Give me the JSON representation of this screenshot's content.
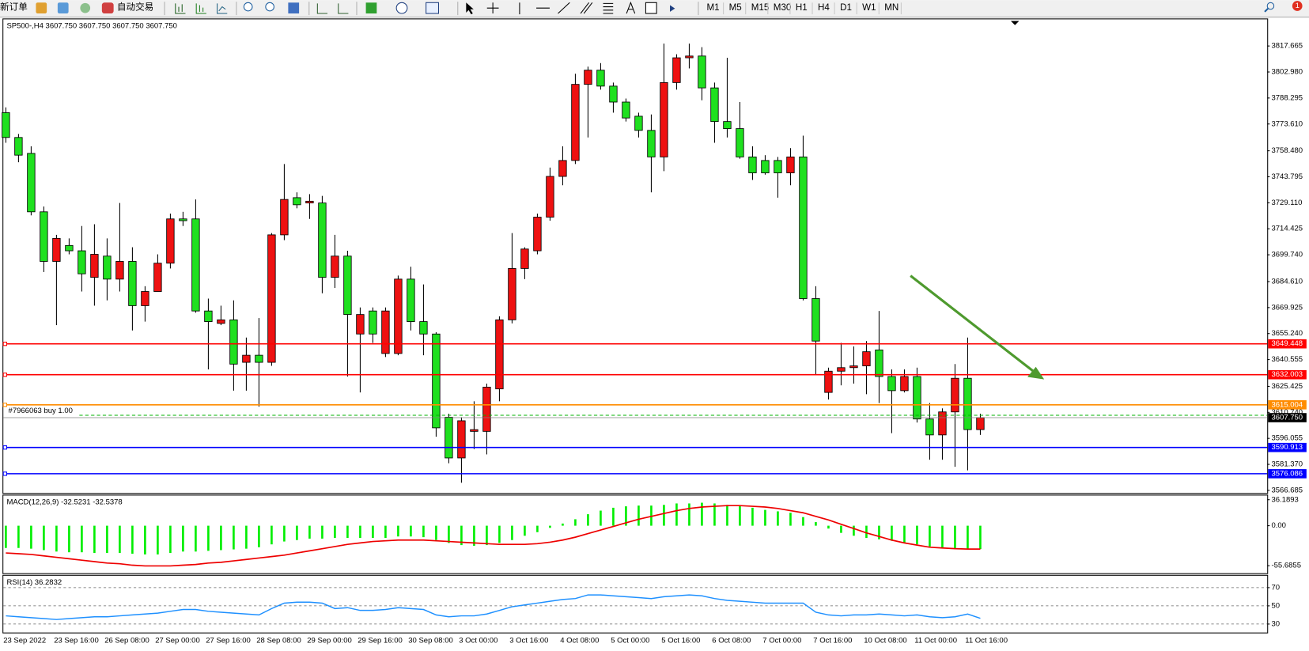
{
  "toolbar": {
    "new_order": "新订单",
    "auto_trading": "自动交易",
    "timeframes": [
      "M1",
      "M5",
      "M15",
      "M30",
      "H1",
      "H4",
      "D1",
      "W1",
      "MN"
    ],
    "notifications": 1
  },
  "chart_data": [
    {
      "type": "candlestick",
      "title": "SP500-,H4  3607.750 3607.750 3607.750 3607.750",
      "categories": [
        "23 Sep 2022",
        null,
        null,
        null,
        "23 Sep 16:00",
        null,
        null,
        null,
        "26 Sep 08:00",
        null,
        null,
        null,
        "27 Sep 00:00",
        null,
        null,
        null,
        "27 Sep 16:00",
        null,
        null,
        null,
        "28 Sep 08:00",
        null,
        null,
        null,
        "29 Sep 00:00",
        null,
        null,
        null,
        "29 Sep 16:00",
        null,
        null,
        null,
        "30 Sep 08:00",
        null,
        null,
        null,
        "3 Oct 00:00",
        null,
        null,
        null,
        "3 Oct 16:00",
        null,
        null,
        null,
        "4 Oct 08:00",
        null,
        null,
        null,
        "5 Oct 00:00",
        null,
        null,
        null,
        "5 Oct 16:00",
        null,
        null,
        null,
        "6 Oct 08:00",
        null,
        null,
        null,
        "7 Oct 00:00",
        null,
        null,
        null,
        "7 Oct 16:00",
        null,
        null,
        null,
        "10 Oct 08:00",
        null,
        null,
        null,
        "11 Oct 00:00",
        null,
        null,
        null,
        "11 Oct 16:00",
        null
      ],
      "open": [
        3780,
        3766,
        3757,
        3724,
        3696,
        3705,
        3702,
        3687,
        3699,
        3686,
        3696,
        3671,
        3679,
        3695,
        3720,
        3720,
        3668,
        3661,
        3663,
        3639,
        3643,
        3639,
        3711,
        3732,
        3729,
        3729,
        3687,
        3699,
        3655,
        3668,
        3644,
        3644,
        3686,
        3662,
        3655,
        3608,
        3585,
        3600,
        3600,
        3624,
        3663,
        3692,
        3702,
        3721,
        3744,
        3753,
        3796,
        3804,
        3795,
        3786,
        3778,
        3770,
        3755,
        3797,
        3811,
        3812,
        3794,
        3775,
        3771,
        3755,
        3753,
        3753,
        3746,
        3755,
        3675,
        3622,
        3634,
        3636,
        3637,
        3646,
        3631,
        3623,
        3631,
        3607,
        3598,
        3611,
        3630,
        3601
      ],
      "high": [
        3783,
        3768,
        3761,
        3727,
        3711,
        3709,
        3716,
        3717,
        3709,
        3729,
        3704,
        3682,
        3700,
        3723,
        3724,
        3731,
        3675,
        3671,
        3674,
        3653,
        3664,
        3712,
        3751,
        3735,
        3734,
        3733,
        3711,
        3702,
        3670,
        3670,
        3670,
        3688,
        3693,
        3683,
        3656,
        3610,
        3608,
        3617,
        3627,
        3665,
        3712,
        3704,
        3723,
        3749,
        3761,
        3802,
        3806,
        3808,
        3797,
        3788,
        3780,
        3779,
        3819,
        3813,
        3819,
        3817,
        3797,
        3811,
        3786,
        3761,
        3756,
        3755,
        3760,
        3767,
        3682,
        3636,
        3650,
        3648,
        3651,
        3668,
        3635,
        3635,
        3636,
        3616,
        3613,
        3638,
        3653,
        3610
      ],
      "low": [
        3763,
        3752,
        3722,
        3690,
        3660,
        3700,
        3679,
        3671,
        3674,
        3679,
        3657,
        3662,
        3679,
        3692,
        3716,
        3667,
        3635,
        3660,
        3623,
        3623,
        3614,
        3637,
        3708,
        3726,
        3720,
        3678,
        3681,
        3631,
        3622,
        3650,
        3642,
        3643,
        3657,
        3643,
        3597,
        3582,
        3571,
        3590,
        3587,
        3617,
        3661,
        3686,
        3700,
        3719,
        3739,
        3751,
        3766,
        3793,
        3780,
        3775,
        3766,
        3735,
        3747,
        3793,
        3805,
        3787,
        3763,
        3766,
        3754,
        3742,
        3745,
        3732,
        3739,
        3674,
        3632,
        3618,
        3626,
        3627,
        3621,
        3616,
        3599,
        3622,
        3605,
        3584,
        3584,
        3580,
        3578,
        3598
      ],
      "close": [
        3766,
        3756,
        3724,
        3696,
        3709,
        3702,
        3689,
        3700,
        3686,
        3696,
        3671,
        3679,
        3695,
        3720,
        3719,
        3668,
        3662,
        3663,
        3638,
        3643,
        3639,
        3711,
        3731,
        3728,
        3730,
        3687,
        3699,
        3666,
        3666,
        3655,
        3668,
        3686,
        3662,
        3655,
        3602,
        3585,
        3606,
        3601,
        3625,
        3663,
        3692,
        3703,
        3721,
        3744,
        3753,
        3796,
        3804,
        3795,
        3786,
        3777,
        3770,
        3755,
        3797,
        3811,
        3812,
        3794,
        3775,
        3771,
        3755,
        3746,
        3746,
        3746,
        3755,
        3675,
        3651,
        3634,
        3636,
        3637,
        3645,
        3631,
        3623,
        3631,
        3607,
        3598,
        3611,
        3630,
        3601,
        3607.75
      ],
      "up_color": "#ee1111",
      "down_color": "#1fe01f",
      "ylim": [
        3565.2,
        3833.2
      ],
      "yticks": [
        3817.665,
        {
          "value": 3802.98,
          "label": "3802.980"
        },
        3788.295,
        {
          "value": 3773.61,
          "label": "3773.610"
        },
        {
          "value": 3758.48,
          "label": "3758.480"
        },
        3743.795,
        {
          "value": 3729.11,
          "label": "3729.110"
        },
        3714.425,
        {
          "value": 3699.74,
          "label": "3699.740"
        },
        {
          "value": 3684.61,
          "label": "3684.610"
        },
        3669.925,
        {
          "value": 3655.24,
          "label": "3655.240"
        },
        3640.555,
        3625.425,
        {
          "value": 3610.74,
          "label": "3610.740"
        },
        3596.055,
        {
          "value": 3581.37,
          "label": "3581.370"
        },
        3566.685
      ],
      "levels": [
        {
          "value": 3649.448,
          "color": "#ff0000"
        },
        {
          "value": 3632.003,
          "color": "#ff0000"
        },
        {
          "value": 3615.004,
          "color": "#ff8c00"
        },
        {
          "value": 3590.913,
          "color": "#0000ff"
        },
        {
          "value": 3576.086,
          "color": "#0000ff"
        }
      ],
      "current_price": {
        "value": 3607.75,
        "label": "3607.750"
      },
      "order": {
        "label": "#7966063 buy 1.00",
        "value": 3609.1,
        "color": "#00b000"
      }
    },
    {
      "type": "macd",
      "title": "MACD(12,26,9) -32.5231 -32.5378",
      "histogram": [
        -31,
        -31,
        -32,
        -34,
        -36,
        -37,
        -37,
        -38,
        -38,
        -38,
        -39,
        -40,
        -40,
        -38,
        -36,
        -36,
        -35,
        -34,
        -33,
        -32,
        -30,
        -26,
        -22,
        -20,
        -18,
        -18,
        -17,
        -17,
        -17,
        -17,
        -17,
        -15,
        -15,
        -16,
        -20,
        -24,
        -27,
        -28,
        -27,
        -24,
        -20,
        -14,
        -9,
        -3,
        3,
        9,
        16,
        21,
        25,
        27,
        28,
        28,
        29,
        31,
        31,
        32,
        31,
        29,
        28,
        25,
        22,
        20,
        18,
        12,
        5,
        -4,
        -10,
        -14,
        -17,
        -19,
        -21,
        -24,
        -26,
        -29,
        -31,
        -32,
        -32,
        -32.5231
      ],
      "signal": [
        -38,
        -39,
        -40,
        -42,
        -44,
        -46,
        -48,
        -50,
        -52,
        -53,
        -55,
        -56,
        -56,
        -56,
        -55,
        -54,
        -52,
        -51,
        -49,
        -47,
        -45,
        -43,
        -41,
        -38,
        -35,
        -32,
        -29,
        -26,
        -24,
        -22,
        -21,
        -20,
        -20,
        -20,
        -21,
        -22,
        -23,
        -24,
        -25,
        -26,
        -26,
        -26,
        -25,
        -23,
        -20,
        -16,
        -11,
        -6,
        -1,
        4,
        9,
        13,
        17,
        21,
        24,
        26,
        27,
        28,
        28,
        27,
        26,
        24,
        21,
        18,
        13,
        8,
        2,
        -4,
        -10,
        -15,
        -20,
        -24,
        -27,
        -30,
        -31,
        -32,
        -32.5,
        -32.5378
      ],
      "histogram_color": "#00ee00",
      "signal_color": "#ee0000",
      "ylim": [
        -66.15,
        43.2
      ],
      "yticks": [
        36.1893,
        {
          "value": 0,
          "label": "0.00"
        },
        -55.6855
      ]
    },
    {
      "type": "rsi",
      "title": "RSI(14) 36.2832",
      "values": [
        39,
        38,
        37,
        36,
        35,
        36,
        37,
        38,
        38,
        39,
        40,
        41,
        42,
        44,
        46,
        46,
        44,
        43,
        42,
        41,
        40,
        47,
        53,
        54,
        54,
        53,
        47,
        48,
        45,
        45,
        46,
        48,
        47,
        46,
        40,
        38,
        39,
        39,
        41,
        45,
        49,
        51,
        53,
        55,
        57,
        58,
        62,
        62,
        61,
        60,
        59,
        58,
        60,
        61,
        62,
        61,
        58,
        56,
        55,
        54,
        53,
        53,
        53,
        53,
        43,
        40,
        39,
        40,
        40,
        41,
        40,
        39,
        40,
        38,
        37,
        38,
        41,
        36.2832
      ],
      "color": "#1e90ff",
      "ylim": [
        20.7,
        84
      ],
      "yticks": [
        70,
        50,
        30
      ]
    }
  ]
}
